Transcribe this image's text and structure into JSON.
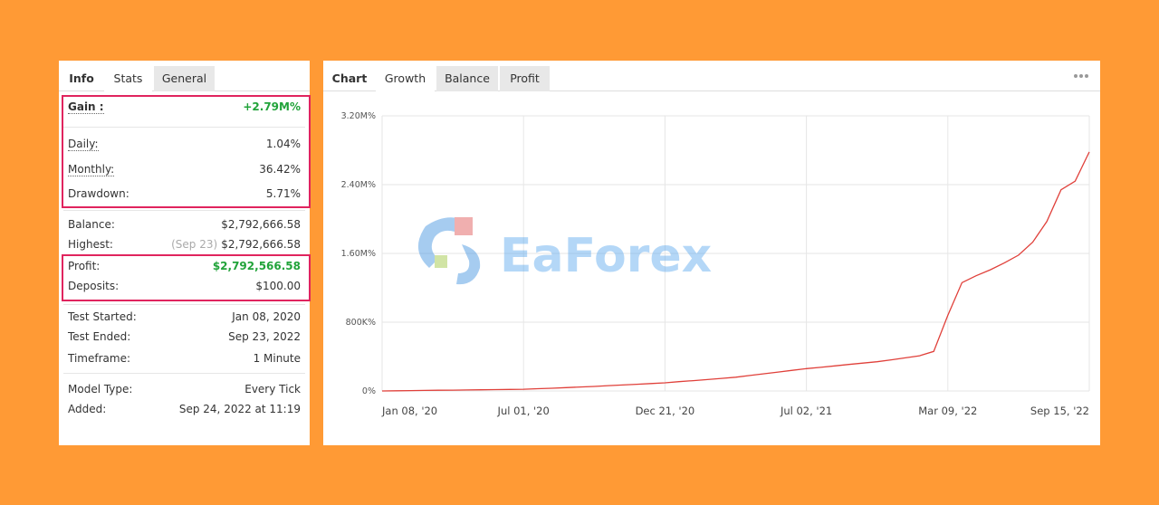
{
  "left_panel": {
    "tabs": [
      "Info",
      "Stats",
      "General"
    ],
    "groups": [
      {
        "highlighted": true,
        "rows": [
          {
            "label": "Gain :",
            "value": "+2.79M%",
            "color": "#22a33a",
            "bold": true,
            "dotted": true
          },
          {
            "label": "Daily:",
            "value": "1.04%",
            "dotted": true
          },
          {
            "label": "Monthly:",
            "value": "36.42%",
            "dotted": true
          },
          {
            "label": "Drawdown:",
            "value": "5.71%"
          }
        ]
      },
      {
        "highlighted": false,
        "rows": [
          {
            "label": "Balance:",
            "value": "$2,792,666.58"
          },
          {
            "label": "Highest:",
            "note": "(Sep 23)",
            "value": "$2,792,666.58"
          }
        ]
      },
      {
        "highlighted": true,
        "rows": [
          {
            "label": "Profit:",
            "value": "$2,792,566.58",
            "color": "#22a33a"
          },
          {
            "label": "Deposits:",
            "value": "$100.00"
          }
        ]
      },
      {
        "highlighted": false,
        "rows": [
          {
            "label": "Test Started:",
            "value": "Jan 08, 2020"
          },
          {
            "label": "Test Ended:",
            "value": "Sep 23, 2022"
          },
          {
            "label": "Timeframe:",
            "value": "1 Minute"
          }
        ]
      },
      {
        "highlighted": false,
        "rows": [
          {
            "label": "Model Type:",
            "value": "Every Tick"
          },
          {
            "label": "Added:",
            "value": "Sep 24, 2022 at 11:19"
          }
        ]
      }
    ]
  },
  "right_panel": {
    "tabs": [
      "Chart",
      "Growth",
      "Balance",
      "Profit"
    ]
  },
  "watermark": "EaForex",
  "chart_data": {
    "type": "line",
    "categories": [
      "Jan 08, '20",
      null,
      null,
      null,
      null,
      null,
      null,
      null,
      null,
      null,
      "Jul 01, '20",
      null,
      null,
      null,
      null,
      null,
      null,
      null,
      null,
      null,
      "Dec 21, '20",
      null,
      null,
      null,
      null,
      null,
      null,
      null,
      null,
      null,
      "Jul 02, '21",
      null,
      null,
      null,
      null,
      null,
      null,
      null,
      null,
      null,
      "Mar 09, '22",
      null,
      null,
      null,
      null,
      null,
      null,
      null,
      null,
      null,
      "Sep 15, '22"
    ],
    "series": [
      {
        "name": "Growth",
        "color": "#e0403a",
        "values": [
          0,
          2000,
          4000,
          6000,
          8000,
          10000,
          12000,
          14000,
          16000,
          18000,
          20000,
          26000,
          32000,
          39000,
          46000,
          53000,
          62000,
          70000,
          78000,
          86000,
          95000,
          108000,
          120000,
          133000,
          146000,
          160000,
          180000,
          200000,
          220000,
          240000,
          260000,
          275000,
          292000,
          308000,
          324000,
          340000,
          362000,
          385000,
          410000,
          460000,
          880000,
          1260000,
          1340000,
          1410000,
          1490000,
          1580000,
          1730000,
          1970000,
          2340000,
          2440000,
          2780000
        ]
      }
    ],
    "ylim": [
      0,
      3200000
    ],
    "yticks": [
      {
        "value": 0,
        "label": "0%"
      },
      {
        "value": 800000,
        "label": "800K%"
      },
      {
        "value": 1600000,
        "label": "1.60M%"
      },
      {
        "value": 2400000,
        "label": "2.40M%"
      },
      {
        "value": 3200000,
        "label": "3.20M%"
      }
    ],
    "grid": true
  }
}
